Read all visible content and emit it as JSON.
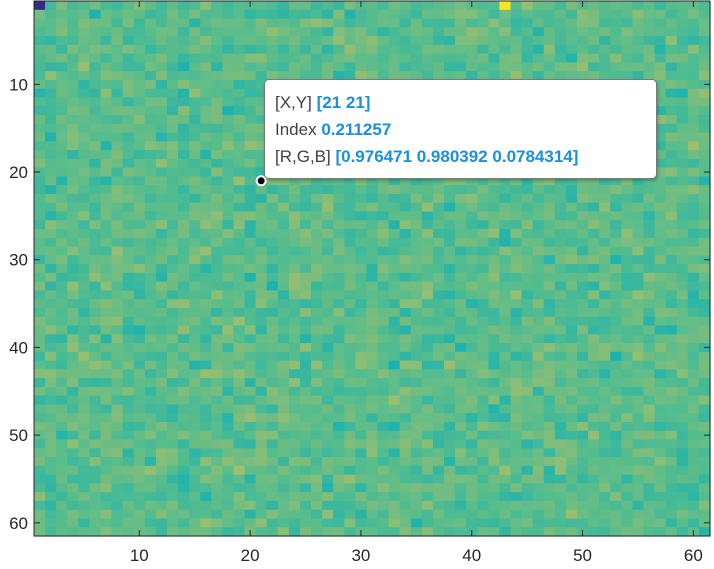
{
  "chart_data": {
    "type": "heatmap",
    "title": "",
    "xlabel": "",
    "ylabel": "",
    "rows": 61,
    "cols": 61,
    "colormap": "parula",
    "value_range_typical": [
      0.4,
      0.6
    ],
    "xlim": [
      0.5,
      61.5
    ],
    "ylim": [
      0.5,
      61.5
    ],
    "y_direction": "reverse",
    "x_ticks": [
      10,
      20,
      30,
      40,
      50,
      60
    ],
    "y_ticks": [
      10,
      20,
      30,
      40,
      50,
      60
    ],
    "x_tick_labels": [
      "10",
      "20",
      "30",
      "40",
      "50",
      "60"
    ],
    "y_tick_labels": [
      "10",
      "20",
      "30",
      "40",
      "50",
      "60"
    ],
    "special_cells": [
      {
        "x": 1,
        "y": 1,
        "value": 0.0
      },
      {
        "x": 43,
        "y": 1,
        "value": 0.9
      }
    ]
  },
  "datatip": {
    "x": 21,
    "y": 21,
    "xy_label": "[X,Y]",
    "xy_value": "[21 21]",
    "index_label": "Index",
    "index_value": "0.211257",
    "rgb_label": "[R,G,B]",
    "rgb_value": "[0.976471 0.980392 0.0784314]"
  },
  "colors": {
    "axis": "#262626",
    "datatip_value": "#1b8fe0",
    "datatip_marker": "#000000"
  }
}
